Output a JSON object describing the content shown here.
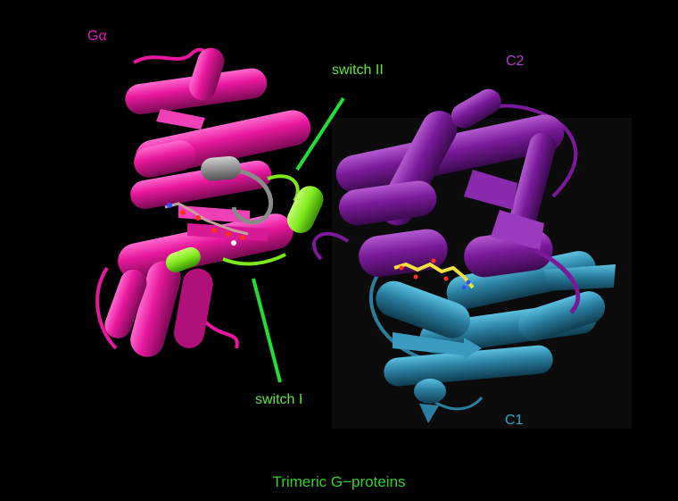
{
  "labels": {
    "g_alpha": "Gα",
    "c2": "C2",
    "switch_2": "switch II",
    "switch_1": "switch I",
    "c1": "C1"
  },
  "caption": "Trimeric G−proteins",
  "colors": {
    "background": "#000000",
    "g_alpha": "#e8189e",
    "c2": "#7a1a9a",
    "c1": "#2a7fa0",
    "switch_region": "#7ce81a",
    "switch_pointer": "#22dd33",
    "loop_grey": "#8a8a8a",
    "ligand": "#f0e040"
  }
}
